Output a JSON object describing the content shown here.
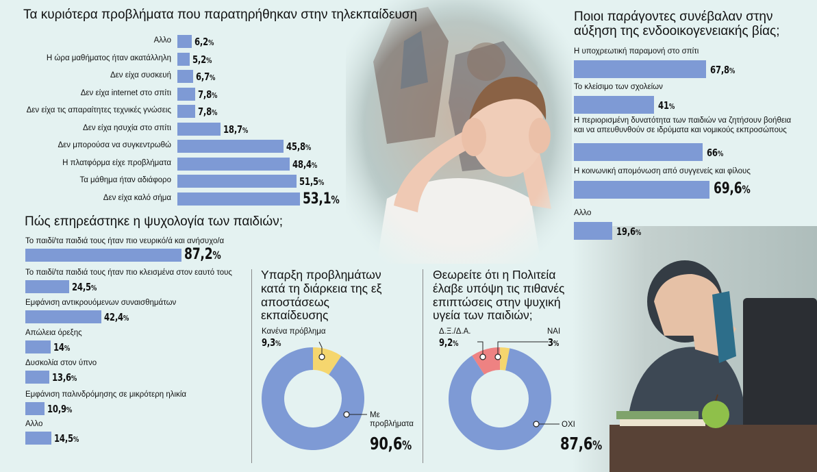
{
  "chart_data": [
    {
      "type": "bar",
      "orientation": "horizontal",
      "title": "Τα κυριότερα προβλήματα που παρατηρήθηκαν στην τηλεκπαίδευση",
      "categories": [
        "Αλλο",
        "Η ώρα μαθήματος ήταν ακατάλληλη",
        "Δεν είχα συσκευή",
        "Δεν είχα internet στο σπίτι",
        "Δεν είχα τις απαραίτητες τεχνικές γνώσεις",
        "Δεν είχα ησυχία στο σπίτι",
        "Δεν μπορούσα να συγκεντρωθώ",
        "Η πλατφόρμα είχε προβλήματα",
        "Τα μάθημα ήταν αδιάφορο",
        "Δεν είχα καλό σήμα"
      ],
      "values": [
        6.2,
        5.2,
        6.7,
        7.8,
        7.8,
        18.7,
        45.8,
        48.4,
        51.5,
        53.1
      ],
      "labels": [
        "6,2",
        "5,2",
        "6,7",
        "7,8",
        "7,8",
        "18,7",
        "45,8",
        "48,4",
        "51,5",
        "53,1"
      ],
      "unit": "%",
      "color": "#7e9ad5"
    },
    {
      "type": "bar",
      "orientation": "horizontal",
      "title": "Ποιοι παράγοντες συνέβαλαν στην αύξηση της ενδοοικογενειακής βίας;",
      "categories": [
        "Η υποχρεωτική παραμονή στο σπίτι",
        "Το κλείσιμο των σχολείων",
        "Η περιορισμένη δυνατότητα των παιδιών να ζητήσουν βοήθεια και να απευθυνθούν σε ιδρύματα και νομικούς εκπροσώπους",
        "Η κοινωνική απομόνωση από συγγενείς και φίλους",
        "Αλλο"
      ],
      "values": [
        67.8,
        41,
        66,
        69.6,
        19.6
      ],
      "labels": [
        "67,8",
        "41",
        "66",
        "69,6",
        "19,6"
      ],
      "unit": "%",
      "color": "#7e9ad5"
    },
    {
      "type": "bar",
      "orientation": "horizontal",
      "title": "Πώς επηρεάστηκε η ψυχολογία των παιδιών;",
      "categories": [
        "Το παιδί/τα παιδιά τους ήταν πιο νευρικό/ά και ανήσυχο/α",
        "Το παιδί/τα παιδιά τους ήταν πιο κλεισμένα στον εαυτό τους",
        "Εμφάνιση αντικρουόμενων συναισθημάτων",
        "Απώλεια όρεξης",
        "Δυσκολία στον ύπνο",
        "Εμφάνιση παλινδρόμησης σε μικρότερη ηλικία",
        "Αλλο"
      ],
      "values": [
        87.2,
        24.5,
        42.4,
        14,
        13.6,
        10.9,
        14.5
      ],
      "labels": [
        "87,2",
        "24,5",
        "42,4",
        "14",
        "13,6",
        "10,9",
        "14,5"
      ],
      "unit": "%",
      "color": "#7e9ad5"
    },
    {
      "type": "pie",
      "donut": true,
      "title": "Υπαρξη προβλημάτων κατά τη διάρκεια της εξ αποστάσεως εκπαίδευσης",
      "slices": [
        {
          "name": "Κανένα πρόβλημα",
          "value": 9.3,
          "label": "9,3",
          "color": "#f5d66e"
        },
        {
          "name": "Με προβλήματα",
          "value": 90.6,
          "label": "90,6",
          "color": "#7e9ad5"
        }
      ],
      "unit": "%"
    },
    {
      "type": "pie",
      "donut": true,
      "title": "Θεωρείτε ότι η Πολιτεία έλαβε υπόψη τις πιθανές επιπτώσεις στην ψυχική υγεία των παιδιών;",
      "slices": [
        {
          "name": "Δ.Ξ./Δ.Α.",
          "value": 9.2,
          "label": "9,2",
          "color": "#ee8282"
        },
        {
          "name": "ΝΑΙ",
          "value": 3,
          "label": "3",
          "color": "#f5d66e"
        },
        {
          "name": "ΟΧΙ",
          "value": 87.6,
          "label": "87,6",
          "color": "#7e9ad5"
        }
      ],
      "unit": "%"
    }
  ],
  "colors": {
    "background": "#e4f2f1",
    "bar": "#7e9ad5"
  },
  "icons": [
    "photo-of-boy-covering-ears",
    "photo-of-child-at-laptop"
  ]
}
